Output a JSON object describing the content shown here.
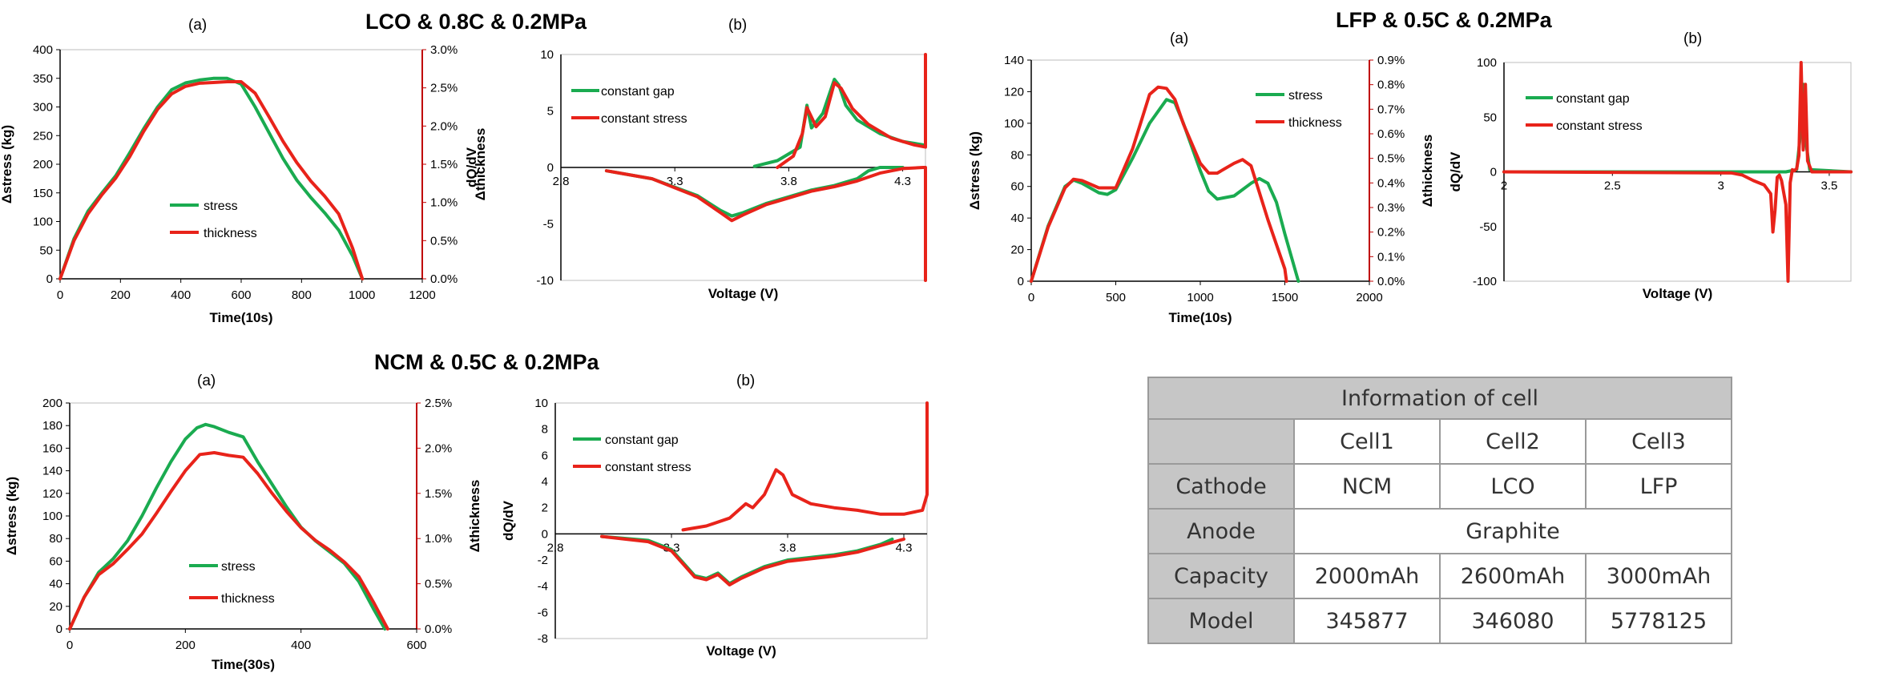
{
  "titles": {
    "lco": "LCO & 0.8C & 0.2MPa",
    "lfp": "LFP & 0.5C & 0.2MPa",
    "ncm": "NCM & 0.5C & 0.2MPa"
  },
  "colors": {
    "green": "#1aab50",
    "red": "#e8231a"
  },
  "chart_data": [
    {
      "id": "lco-a",
      "type": "line",
      "panel": "(a)",
      "xlabel": "Time(10s)",
      "ylabel": "Δstress (kg)",
      "y2label": "Δthickness",
      "xlim": [
        0,
        1300
      ],
      "ylim": [
        0,
        400
      ],
      "y2lim": [
        0,
        3.0
      ],
      "xticks": [
        "0",
        "200",
        "400",
        "600",
        "800",
        "1000",
        "1200"
      ],
      "yticks": [
        "0",
        "50",
        "100",
        "150",
        "200",
        "250",
        "300",
        "350",
        "400"
      ],
      "y2ticks": [
        "0.0%",
        "0.5%",
        "1.0%",
        "1.5%",
        "2.0%",
        "2.5%",
        "3.0%"
      ],
      "legend": [
        "stress",
        "thickness"
      ],
      "series": [
        {
          "name": "stress",
          "color": "green",
          "axis": "left",
          "x": [
            0,
            50,
            100,
            150,
            200,
            250,
            300,
            350,
            400,
            450,
            500,
            550,
            600,
            650,
            700,
            750,
            800,
            850,
            900,
            950,
            1000,
            1050,
            1085
          ],
          "y": [
            0,
            70,
            118,
            150,
            180,
            220,
            262,
            300,
            330,
            342,
            347,
            350,
            350,
            340,
            300,
            255,
            210,
            172,
            142,
            115,
            85,
            40,
            0
          ]
        },
        {
          "name": "thickness",
          "color": "red",
          "axis": "right",
          "x": [
            0,
            50,
            100,
            150,
            200,
            250,
            300,
            350,
            400,
            450,
            500,
            550,
            600,
            650,
            700,
            750,
            800,
            850,
            900,
            950,
            1000,
            1050,
            1085
          ],
          "y": [
            0,
            0.5,
            0.85,
            1.1,
            1.32,
            1.6,
            1.93,
            2.22,
            2.42,
            2.52,
            2.56,
            2.57,
            2.58,
            2.58,
            2.43,
            2.12,
            1.8,
            1.52,
            1.28,
            1.08,
            0.85,
            0.4,
            0
          ]
        }
      ]
    },
    {
      "id": "lco-b",
      "type": "line",
      "panel": "(b)",
      "xlabel": "Voltage (V)",
      "ylabel": "dQ/dV",
      "xlim": [
        2.8,
        4.4
      ],
      "ylim": [
        -10,
        10
      ],
      "xticks": [
        "2.8",
        "3.3",
        "3.8",
        "4.3"
      ],
      "xtickvals": [
        2.8,
        3.3,
        3.8,
        4.3
      ],
      "yticks": [
        "-10",
        "-5",
        "0",
        "5",
        "10"
      ],
      "legend": [
        "constant gap",
        "constant stress"
      ],
      "series": [
        {
          "name": "constant gap",
          "color": "green",
          "x": [
            3.0,
            3.2,
            3.4,
            3.5,
            3.55,
            3.6,
            3.7,
            3.8,
            3.9,
            4.0,
            4.1,
            4.15,
            4.2,
            4.3
          ],
          "y": [
            -0.3,
            -1.0,
            -2.5,
            -3.8,
            -4.3,
            -4.0,
            -3.2,
            -2.6,
            -2.0,
            -1.6,
            -1.0,
            -0.3,
            0,
            0
          ]
        },
        {
          "name": "constant gap",
          "color": "green",
          "x": [
            3.65,
            3.75,
            3.85,
            3.88,
            3.9,
            3.95,
            4.0,
            4.02,
            4.05,
            4.1,
            4.2,
            4.3,
            4.39
          ],
          "y": [
            0.1,
            0.6,
            1.8,
            5.5,
            3.5,
            4.8,
            7.8,
            7.3,
            5.5,
            4.2,
            3.0,
            2.3,
            2.0
          ]
        },
        {
          "name": "constant stress",
          "color": "red",
          "x": [
            3.0,
            3.2,
            3.4,
            3.5,
            3.55,
            3.6,
            3.7,
            3.8,
            3.9,
            4.0,
            4.1,
            4.2,
            4.3,
            4.39,
            4.4,
            4.4
          ],
          "y": [
            -0.3,
            -1.0,
            -2.6,
            -4.0,
            -4.7,
            -4.2,
            -3.3,
            -2.7,
            -2.1,
            -1.7,
            -1.2,
            -0.5,
            -0.1,
            0,
            0,
            -10
          ]
        },
        {
          "name": "constant stress",
          "color": "red",
          "x": [
            3.75,
            3.82,
            3.86,
            3.88,
            3.92,
            3.96,
            4.0,
            4.03,
            4.08,
            4.15,
            4.25,
            4.35,
            4.4,
            4.4
          ],
          "y": [
            0,
            1.0,
            3.0,
            5.3,
            3.6,
            4.5,
            7.5,
            7.0,
            5.2,
            3.8,
            2.6,
            2.0,
            1.8,
            10
          ]
        }
      ]
    },
    {
      "id": "lfp-a",
      "type": "line",
      "panel": "(a)",
      "xlabel": "Time(10s)",
      "ylabel": "Δstress (kg)",
      "y2label": "Δthickness",
      "xlim": [
        0,
        2000
      ],
      "ylim": [
        0,
        140
      ],
      "y2lim": [
        0,
        0.9
      ],
      "xticks": [
        "0",
        "500",
        "1000",
        "1500",
        "2000"
      ],
      "yticks": [
        "0",
        "20",
        "40",
        "60",
        "80",
        "100",
        "120",
        "140"
      ],
      "y2ticks": [
        "0.0%",
        "0.1%",
        "0.2%",
        "0.3%",
        "0.4%",
        "0.5%",
        "0.6%",
        "0.7%",
        "0.8%",
        "0.9%"
      ],
      "legend": [
        "stress",
        "thickness"
      ],
      "series": [
        {
          "name": "stress",
          "color": "green",
          "axis": "left",
          "x": [
            0,
            100,
            200,
            250,
            300,
            400,
            450,
            500,
            600,
            700,
            800,
            850,
            900,
            1000,
            1050,
            1100,
            1200,
            1300,
            1350,
            1400,
            1450,
            1500,
            1580
          ],
          "y": [
            0,
            35,
            60,
            64,
            62,
            56,
            55,
            58,
            78,
            100,
            115,
            113,
            100,
            70,
            57,
            52,
            54,
            62,
            65,
            62,
            50,
            30,
            0
          ]
        },
        {
          "name": "thickness",
          "color": "red",
          "axis": "right",
          "x": [
            0,
            100,
            200,
            250,
            300,
            400,
            500,
            600,
            700,
            750,
            800,
            850,
            900,
            1000,
            1050,
            1100,
            1200,
            1250,
            1300,
            1400,
            1500,
            1510
          ],
          "y": [
            0,
            0.22,
            0.38,
            0.415,
            0.41,
            0.38,
            0.38,
            0.54,
            0.76,
            0.79,
            0.785,
            0.74,
            0.64,
            0.48,
            0.44,
            0.44,
            0.48,
            0.495,
            0.47,
            0.25,
            0.05,
            0
          ]
        }
      ]
    },
    {
      "id": "lfp-b",
      "type": "line",
      "panel": "(b)",
      "xlabel": "Voltage (V)",
      "ylabel": "dQ/dV",
      "xlim": [
        2.0,
        3.6
      ],
      "ylim": [
        -100,
        100
      ],
      "xticks": [
        "2",
        "2.5",
        "3",
        "3.5"
      ],
      "xtickvals": [
        2.0,
        2.5,
        3.0,
        3.5
      ],
      "yticks": [
        "-100",
        "-50",
        "0",
        "50",
        "100"
      ],
      "legend": [
        "constant gap",
        "constant stress"
      ],
      "series": [
        {
          "name": "constant gap",
          "color": "green",
          "x": [
            2.0,
            3.0,
            3.3,
            3.35,
            3.37,
            3.38,
            3.39,
            3.41,
            3.6
          ],
          "y": [
            0,
            0,
            0,
            2,
            40,
            80,
            30,
            2,
            0
          ]
        },
        {
          "name": "constant stress",
          "color": "red",
          "x": [
            2.0,
            3.05,
            3.1,
            3.15,
            3.2,
            3.23,
            3.24,
            3.25,
            3.26,
            3.27,
            3.28,
            3.3,
            3.31,
            3.32,
            3.33,
            3.34,
            3.35,
            3.36,
            3.37,
            3.38,
            3.39,
            3.4,
            3.42,
            3.6
          ],
          "y": [
            0,
            -1,
            -3,
            -8,
            -12,
            -20,
            -55,
            -35,
            -5,
            -3,
            -8,
            -30,
            -100,
            -10,
            2,
            1,
            3,
            15,
            100,
            20,
            80,
            10,
            0,
            0
          ]
        }
      ]
    },
    {
      "id": "ncm-a",
      "type": "line",
      "panel": "(a)",
      "xlabel": "Time(30s)",
      "ylabel": "Δstress (kg)",
      "y2label": "Δthickness",
      "xlim": [
        0,
        600
      ],
      "ylim": [
        0,
        200
      ],
      "y2lim": [
        0,
        2.5
      ],
      "xticks": [
        "0",
        "200",
        "400",
        "600"
      ],
      "yticks": [
        "0",
        "20",
        "40",
        "60",
        "80",
        "100",
        "120",
        "140",
        "160",
        "180",
        "200"
      ],
      "y2ticks": [
        "0.0%",
        "0.5%",
        "1.0%",
        "1.5%",
        "2.0%",
        "2.5%"
      ],
      "legend": [
        "stress",
        "thickness"
      ],
      "series": [
        {
          "name": "stress",
          "color": "green",
          "axis": "left",
          "x": [
            0,
            25,
            50,
            75,
            100,
            125,
            150,
            175,
            200,
            220,
            235,
            250,
            275,
            300,
            325,
            350,
            375,
            400,
            425,
            450,
            475,
            500,
            525,
            545
          ],
          "y": [
            0,
            28,
            50,
            62,
            78,
            100,
            125,
            148,
            168,
            178,
            181,
            179,
            174,
            170,
            148,
            128,
            108,
            90,
            78,
            68,
            58,
            42,
            18,
            0
          ]
        },
        {
          "name": "thickness",
          "color": "red",
          "axis": "right",
          "x": [
            0,
            25,
            50,
            75,
            100,
            125,
            150,
            175,
            200,
            225,
            250,
            275,
            300,
            325,
            350,
            375,
            400,
            425,
            450,
            475,
            500,
            525,
            550
          ],
          "y": [
            0,
            0.35,
            0.6,
            0.72,
            0.88,
            1.05,
            1.28,
            1.52,
            1.75,
            1.93,
            1.95,
            1.92,
            1.9,
            1.72,
            1.5,
            1.3,
            1.12,
            0.98,
            0.87,
            0.74,
            0.58,
            0.3,
            0
          ]
        }
      ]
    },
    {
      "id": "ncm-b",
      "type": "line",
      "panel": "(b)",
      "xlabel": "Voltage (V)",
      "ylabel": "dQ/dV",
      "xlim": [
        2.8,
        4.4
      ],
      "ylim": [
        -8,
        10
      ],
      "xticks": [
        "2.8",
        "3.3",
        "3.8",
        "4.3"
      ],
      "xtickvals": [
        2.8,
        3.3,
        3.8,
        4.3
      ],
      "yticks": [
        "-8",
        "-6",
        "-4",
        "-2",
        "0",
        "2",
        "4",
        "6",
        "8",
        "10"
      ],
      "legend": [
        "constant gap",
        "constant stress"
      ],
      "series": [
        {
          "name": "constant gap",
          "color": "green",
          "x": [
            3.0,
            3.2,
            3.3,
            3.4,
            3.45,
            3.5,
            3.55,
            3.6,
            3.7,
            3.8,
            3.9,
            4.0,
            4.1,
            4.2,
            4.25
          ],
          "y": [
            -0.2,
            -0.5,
            -1.2,
            -3.2,
            -3.4,
            -3.0,
            -3.8,
            -3.3,
            -2.5,
            -2.0,
            -1.8,
            -1.6,
            -1.3,
            -0.8,
            -0.4
          ]
        },
        {
          "name": "constant stress",
          "color": "red",
          "x": [
            3.0,
            3.2,
            3.3,
            3.4,
            3.45,
            3.5,
            3.55,
            3.6,
            3.7,
            3.8,
            3.9,
            4.0,
            4.1,
            4.2,
            4.3
          ],
          "y": [
            -0.2,
            -0.6,
            -1.3,
            -3.3,
            -3.5,
            -3.1,
            -3.9,
            -3.4,
            -2.6,
            -2.1,
            -1.9,
            -1.7,
            -1.4,
            -0.9,
            -0.4
          ]
        },
        {
          "name": "constant stress",
          "color": "red",
          "x": [
            3.35,
            3.45,
            3.55,
            3.62,
            3.65,
            3.7,
            3.75,
            3.78,
            3.82,
            3.9,
            4.0,
            4.1,
            4.2,
            4.3,
            4.38,
            4.4,
            4.4
          ],
          "y": [
            0.3,
            0.6,
            1.2,
            2.3,
            2.0,
            3.0,
            4.9,
            4.5,
            3.0,
            2.3,
            2.0,
            1.8,
            1.5,
            1.5,
            1.8,
            3.0,
            10
          ]
        }
      ]
    }
  ],
  "table": {
    "title": "Information of cell",
    "columns": [
      "Cell1",
      "Cell2",
      "Cell3"
    ],
    "rows": [
      {
        "label": "Cathode",
        "cells": [
          "NCM",
          "LCO",
          "LFP"
        ]
      },
      {
        "label": "Anode",
        "merged": "Graphite"
      },
      {
        "label": "Capacity",
        "cells": [
          "2000mAh",
          "2600mAh",
          "3000mAh"
        ]
      },
      {
        "label": "Model",
        "cells": [
          "345877",
          "346080",
          "5778125"
        ]
      }
    ]
  }
}
